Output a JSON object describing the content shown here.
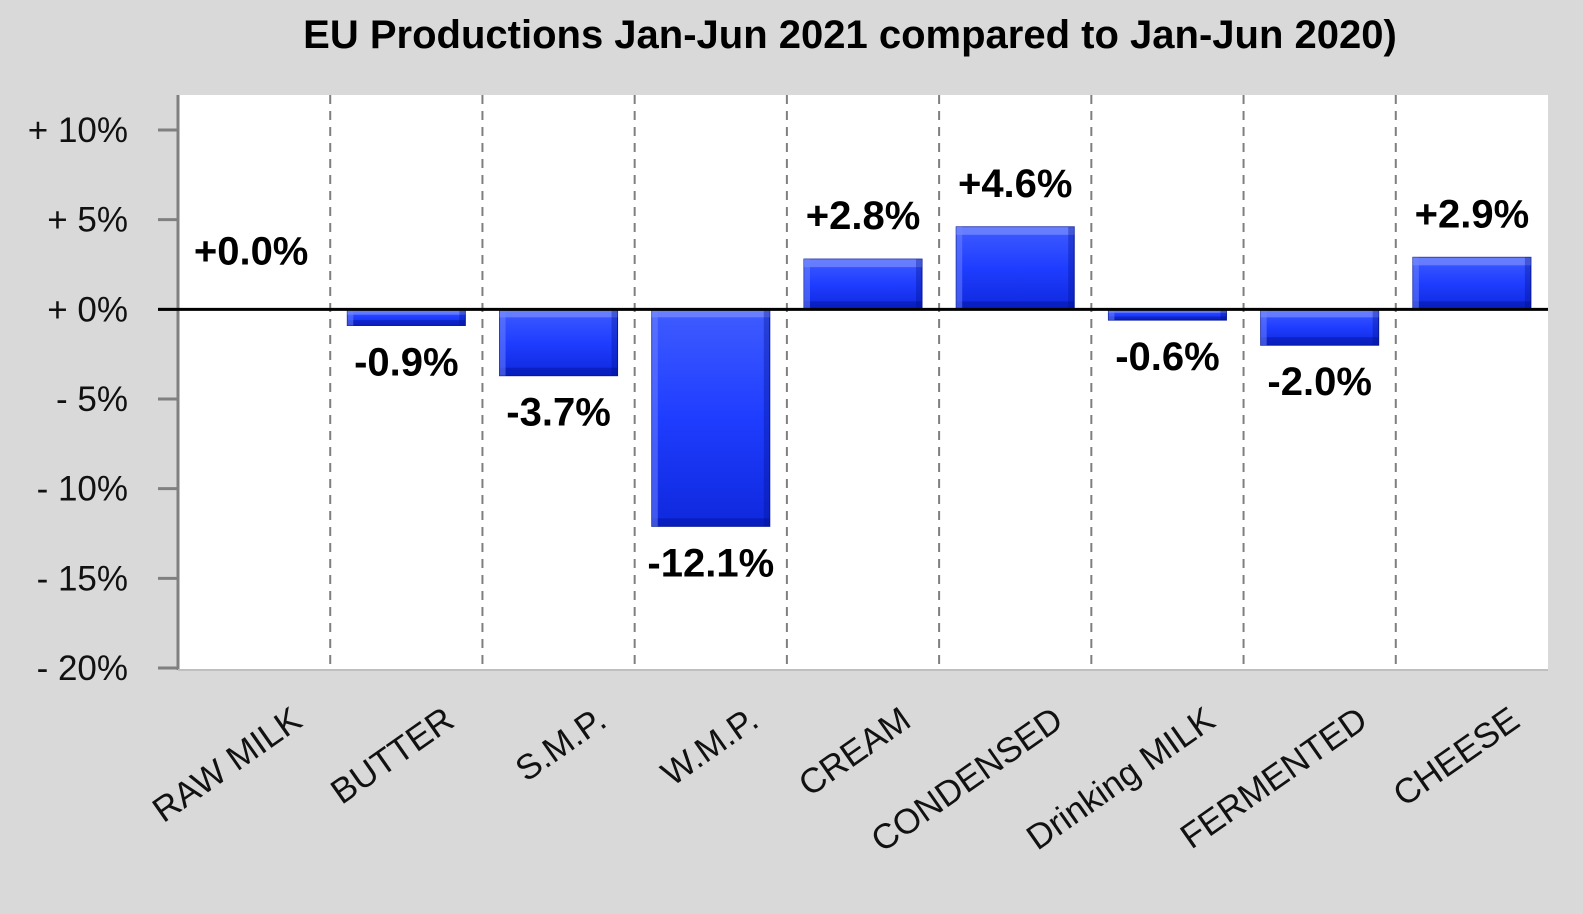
{
  "chart_data": {
    "type": "bar",
    "title": "EU Productions Jan-Jun 2021 compared to Jan-Jun 2020)",
    "xlabel": "",
    "ylabel": "",
    "categories": [
      "RAW MILK",
      "BUTTER",
      "S.M.P.",
      "W.M.P.",
      "CREAM",
      "CONDENSED",
      "Drinking MILK",
      "FERMENTED",
      "CHEESE"
    ],
    "values": [
      0.0,
      -0.9,
      -3.7,
      -12.1,
      2.8,
      4.6,
      -0.6,
      -2.0,
      2.9
    ],
    "data_labels": [
      "+0.0%",
      "-0.9%",
      "-3.7%",
      "-12.1%",
      "+2.8%",
      "+4.6%",
      "-0.6%",
      "-2.0%",
      "+2.9%"
    ],
    "ylim": [
      -20,
      12
    ],
    "y_ticks": [
      10,
      5,
      0,
      -5,
      -10,
      -15,
      -20
    ],
    "y_tick_labels": [
      "+ 10%",
      "+ 5%",
      "+ 0%",
      "- 5%",
      "- 10%",
      "- 15%",
      "- 20%"
    ],
    "grid": "vertical dashed",
    "legend": "none",
    "colors": {
      "bar": "#1f3dff",
      "bar_light": "#5b74ff",
      "bar_dark": "#0a1fcc",
      "plot_bg": "#ffffff",
      "page_bg": "#d9d9d9",
      "grid": "#7f7f7f",
      "axis": "#000000"
    }
  }
}
